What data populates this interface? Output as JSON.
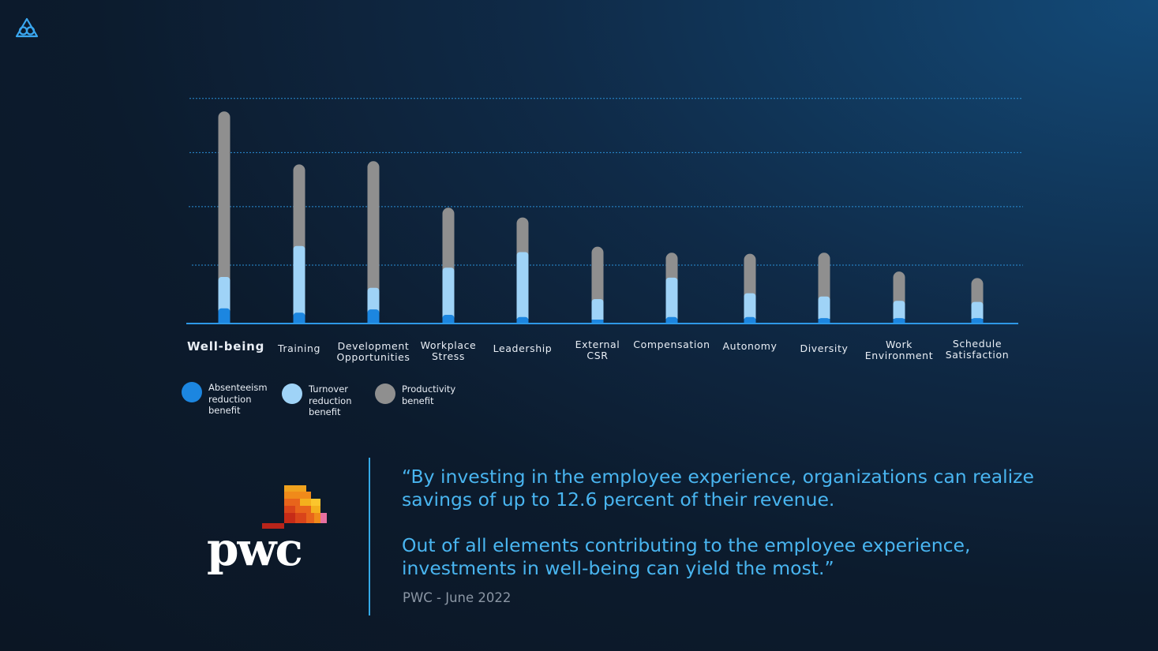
{
  "chart_data": {
    "type": "bar",
    "stacked": true,
    "categories": [
      "Well-being",
      "Training",
      "Development Opportunities",
      "Workplace Stress",
      "Leadership",
      "External CSR",
      "Compensation",
      "Autonomy",
      "Diversity",
      "Work Environment",
      "Schedule Satisfaction"
    ],
    "highlight_category": "Well-being",
    "series": [
      {
        "name": "Absenteeism reduction benefit",
        "color": "#1c86e0",
        "values": [
          0.7,
          0.5,
          0.65,
          0.4,
          0.3,
          0.18,
          0.3,
          0.3,
          0.25,
          0.25,
          0.25
        ]
      },
      {
        "name": "Turnover reduction benefit",
        "color": "#9fd3f7",
        "values": [
          1.45,
          3.08,
          1.0,
          2.18,
          3.0,
          0.95,
          1.82,
          1.1,
          1.0,
          0.8,
          0.75
        ]
      },
      {
        "name": "Productivity benefit",
        "color": "#8f8f8f",
        "values": [
          7.65,
          3.77,
          5.85,
          2.77,
          1.6,
          2.42,
          1.15,
          1.82,
          2.02,
          1.35,
          1.1
        ]
      }
    ],
    "ylim": [
      0,
      10.5
    ],
    "gridlines": [
      2.7,
      5.4,
      7.9,
      10.4
    ],
    "grid": true,
    "legend_position": "bottom-left"
  },
  "legend": [
    {
      "label": "Absenteeism reduction benefit",
      "lines": [
        "Absenteeism",
        "reduction",
        "benefit"
      ],
      "color": "#1c86e0"
    },
    {
      "label": "Turnover reduction benefit",
      "lines": [
        "Turnover",
        "reduction",
        "benefit"
      ],
      "color": "#9fd3f7"
    },
    {
      "label": "Productivity benefit",
      "lines": [
        "Productivity",
        "benefit"
      ],
      "color": "#8f8f8f"
    }
  ],
  "quote": {
    "paragraph1": "“By investing in the employee experience, organizations can realize savings of up to 12.6 percent of their revenue.",
    "paragraph2": "Out of all elements contributing to the employee experience, investments in well-being can yield the most.”",
    "source": "PWC - June 2022"
  },
  "brand": {
    "logo_text": "pwc",
    "accent_color": "#35a9e6"
  }
}
